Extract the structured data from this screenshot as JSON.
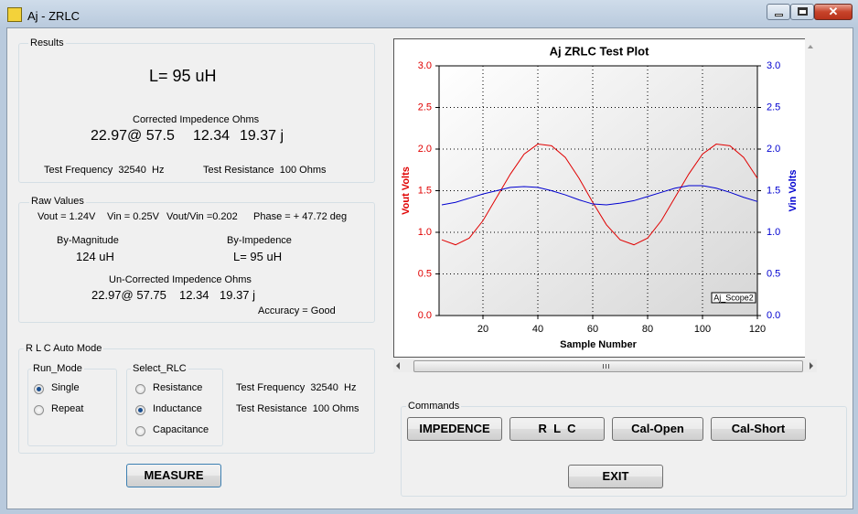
{
  "window": {
    "title": "Aj - ZRLC"
  },
  "results": {
    "label": "Results",
    "main": "L= 95 uH",
    "corrected_heading": "Corrected Impedence Ohms",
    "corrected_values": [
      "22.97@ 57.5",
      "12.34",
      "19.37 j"
    ],
    "test_frequency": "Test Frequency  32540  Hz",
    "test_resistance": "Test Resistance  100 Ohms"
  },
  "raw_values": {
    "label": "Raw Values",
    "readings": [
      "Vout = 1.24V",
      "Vin = 0.25V",
      "Vout/Vin =0.202",
      "Phase = + 47.72 deg"
    ],
    "by_magnitude_label": "By-Magnitude",
    "by_magnitude_value": "124 uH",
    "by_impedence_label": "By-Impedence",
    "by_impedence_value": "L= 95 uH",
    "uncorrected_heading": "Un-Corrected Impedence Ohms",
    "uncorrected_values": [
      "22.97@ 57.75",
      "12.34",
      "19.37 j"
    ],
    "accuracy": "Accuracy = Good"
  },
  "auto_mode": {
    "label": "R L C Auto Mode",
    "run_mode": {
      "label": "Run_Mode",
      "options": [
        {
          "label": "Single",
          "checked": true
        },
        {
          "label": "Repeat",
          "checked": false
        }
      ]
    },
    "select_rlc": {
      "label": "Select_RLC",
      "options": [
        {
          "label": "Resistance",
          "checked": false
        },
        {
          "label": "Inductance",
          "checked": true
        },
        {
          "label": "Capacitance",
          "checked": false
        }
      ]
    },
    "test_frequency": "Test Frequency  32540  Hz",
    "test_resistance": "Test Resistance  100 Ohms"
  },
  "measure_button": "MEASURE",
  "commands": {
    "label": "Commands",
    "buttons": [
      "IMPEDENCE",
      "R  L  C",
      "Cal-Open",
      "Cal-Short"
    ],
    "exit": "EXIT"
  },
  "chart_data": {
    "type": "line",
    "title": "Aj ZRLC Test Plot",
    "xlabel": "Sample Number",
    "ylabel": "Vout Volts",
    "y2label": "Vin Volts",
    "annotation": "Aj_Scope2",
    "x": [
      5,
      10,
      15,
      20,
      25,
      30,
      35,
      40,
      45,
      50,
      55,
      60,
      65,
      70,
      75,
      80,
      85,
      90,
      95,
      100,
      105,
      110,
      115,
      120
    ],
    "series": [
      {
        "color": "#e00000",
        "values": [
          0.91,
          0.85,
          0.93,
          1.14,
          1.42,
          1.7,
          1.94,
          2.06,
          2.04,
          1.9,
          1.65,
          1.36,
          1.09,
          0.91,
          0.85,
          0.93,
          1.14,
          1.42,
          1.7,
          1.94,
          2.06,
          2.04,
          1.9,
          1.65
        ]
      },
      {
        "color": "#0000d0",
        "axis": "y2",
        "values": [
          1.33,
          1.36,
          1.41,
          1.46,
          1.5,
          1.54,
          1.55,
          1.54,
          1.5,
          1.45,
          1.39,
          1.34,
          1.33,
          1.35,
          1.38,
          1.43,
          1.48,
          1.53,
          1.56,
          1.56,
          1.53,
          1.48,
          1.42,
          1.37
        ]
      }
    ],
    "xlim": [
      4,
      120
    ],
    "xticks": [
      20,
      40,
      60,
      80,
      100,
      120
    ],
    "ylim": [
      0,
      3
    ],
    "yticks": [
      {
        "value": 0,
        "label": "0.0"
      },
      0.5,
      {
        "value": 1,
        "label": "1.0"
      },
      1.5,
      {
        "value": 2,
        "label": "2.0"
      },
      2.5,
      {
        "value": 3,
        "label": "3.0"
      }
    ],
    "y2lim": [
      0,
      3
    ],
    "y2ticks": [
      {
        "value": 0,
        "label": "0.0"
      },
      0.5,
      {
        "value": 1,
        "label": "1.0"
      },
      1.5,
      {
        "value": 2,
        "label": "2.0"
      },
      2.5,
      {
        "value": 3,
        "label": "3.0"
      }
    ],
    "grid": true
  }
}
